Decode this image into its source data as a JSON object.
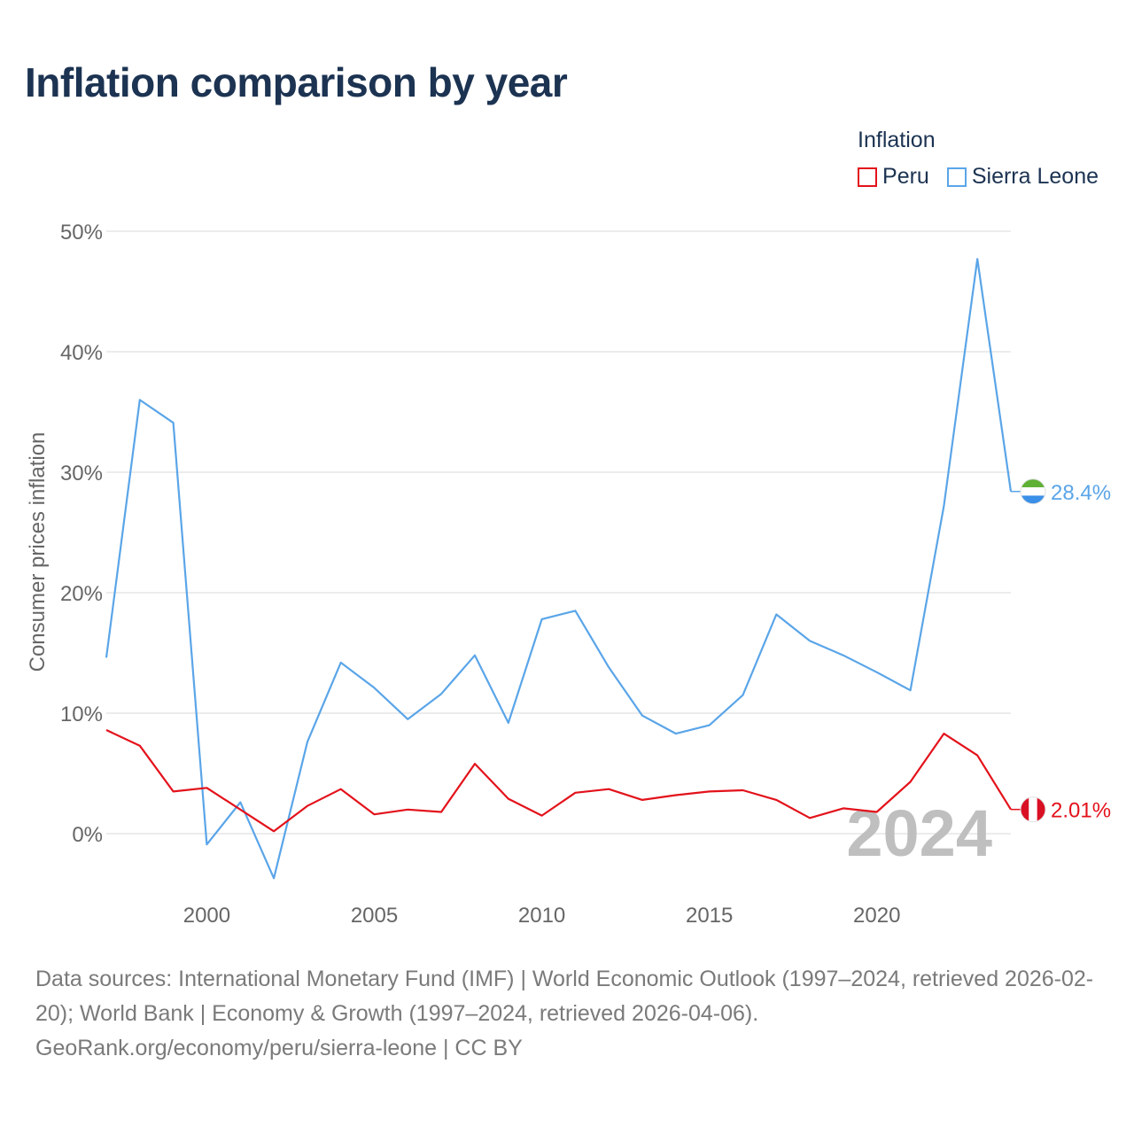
{
  "colors": {
    "peru": "#e3121b",
    "sierra_leone": "#5aa5e8",
    "title": "#1c3352",
    "grid": "#e6e6e6",
    "axis_text": "#666666",
    "watermark_year": "#bfbfbf"
  },
  "title": "Inflation comparison by year",
  "legend": {
    "title": "Inflation",
    "items": [
      "Peru",
      "Sierra Leone"
    ]
  },
  "chart_data": {
    "type": "line",
    "title": "Inflation comparison by year",
    "xlabel": "",
    "ylabel": "Consumer prices inflation",
    "xlim": [
      1997,
      2024
    ],
    "ylim": [
      -5,
      55
    ],
    "xticks": [
      2000,
      2005,
      2010,
      2015,
      2020
    ],
    "yticks": [
      0,
      10,
      20,
      30,
      40,
      50
    ],
    "ytick_labels": [
      "0%",
      "10%",
      "20%",
      "30%",
      "40%",
      "50%"
    ],
    "grid": true,
    "legend_position": "top-right",
    "x": [
      1997,
      1998,
      1999,
      2000,
      2001,
      2002,
      2003,
      2004,
      2005,
      2006,
      2007,
      2008,
      2009,
      2010,
      2011,
      2012,
      2013,
      2014,
      2015,
      2016,
      2017,
      2018,
      2019,
      2020,
      2021,
      2022,
      2023,
      2024
    ],
    "series": [
      {
        "name": "Peru",
        "color": "#e3121b",
        "end_label": "2.01%",
        "values": [
          8.6,
          7.3,
          3.5,
          3.8,
          2.0,
          0.2,
          2.3,
          3.7,
          1.6,
          2.0,
          1.8,
          5.8,
          2.9,
          1.5,
          3.4,
          3.7,
          2.8,
          3.2,
          3.5,
          3.6,
          2.8,
          1.3,
          2.1,
          1.8,
          4.3,
          8.3,
          6.5,
          2.01
        ]
      },
      {
        "name": "Sierra Leone",
        "color": "#5aa5e8",
        "end_label": "28.4%",
        "values": [
          14.6,
          36.0,
          34.1,
          -0.9,
          2.6,
          -3.7,
          7.6,
          14.2,
          12.1,
          9.5,
          11.6,
          14.8,
          9.2,
          17.8,
          18.5,
          13.8,
          9.8,
          8.3,
          9.0,
          11.5,
          18.2,
          16.0,
          14.8,
          13.4,
          11.9,
          27.2,
          47.7,
          28.4
        ]
      }
    ],
    "watermark_year": "2024"
  },
  "footer": {
    "line1": "Data sources: International Monetary Fund (IMF) | World Economic Outlook (1997–2024, retrieved 2026-02-20); World Bank | Economy & Growth (1997–2024, retrieved 2026-04-06).",
    "line2": "GeoRank.org/economy/peru/sierra-leone | CC BY"
  }
}
